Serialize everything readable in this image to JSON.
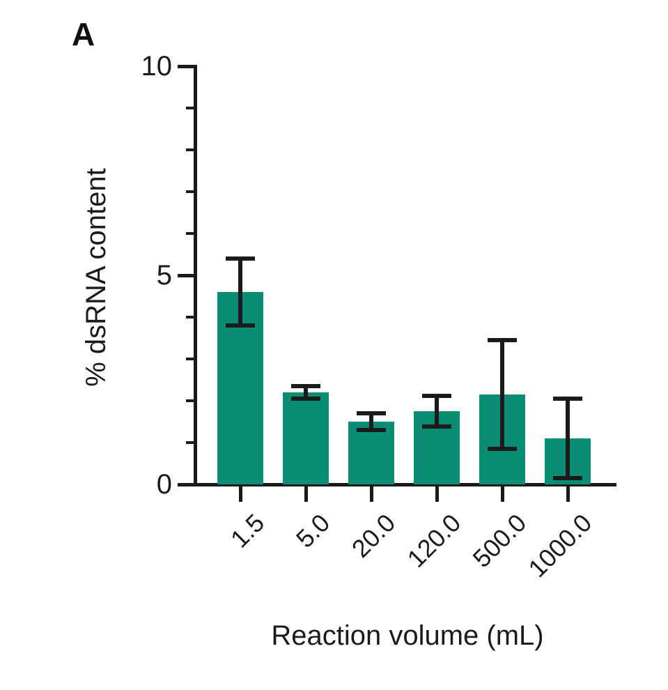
{
  "chart_data": {
    "type": "bar",
    "panel_label": "A",
    "xlabel": "Reaction volume (mL)",
    "ylabel": "% dsRNA content",
    "categories": [
      "1.5",
      "5.0",
      "20.0",
      "120.0",
      "500.0",
      "1000.0"
    ],
    "values": [
      4.6,
      2.2,
      1.5,
      1.75,
      2.15,
      1.1
    ],
    "errors": [
      0.8,
      0.15,
      0.2,
      0.37,
      1.3,
      0.95
    ],
    "ylim": [
      0,
      10
    ],
    "yticks_major": [
      0,
      5,
      10
    ],
    "ytick_minor_step": 1,
    "grid": false,
    "legend": "none",
    "bar_color": "#0b8c74",
    "axis_color": "#1b1b1b"
  }
}
